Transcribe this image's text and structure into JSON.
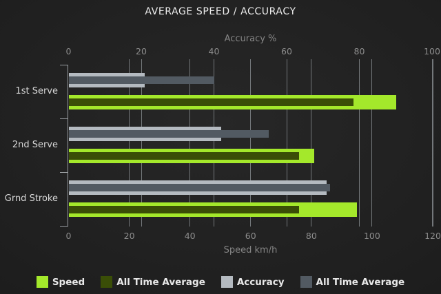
{
  "title": "AVERAGE SPEED / ACCURACY",
  "chart_data": {
    "type": "bar",
    "orientation": "horizontal",
    "grid": true,
    "legend_position": "bottom",
    "categories": [
      "1st Serve",
      "2nd Serve",
      "Grnd Stroke"
    ],
    "axes": {
      "top": {
        "label": "Accuracy %",
        "ticks": [
          0,
          20,
          40,
          60,
          80,
          100
        ],
        "range": [
          0,
          100
        ]
      },
      "bottom": {
        "label": "Speed km/h",
        "ticks": [
          0,
          20,
          40,
          60,
          80,
          100,
          120
        ],
        "range": [
          0,
          120
        ]
      }
    },
    "series": [
      {
        "name": "Speed",
        "axis": "bottom",
        "layer": "base",
        "color": "#a4e82b",
        "values": [
          108,
          81,
          95
        ]
      },
      {
        "name": "All Time Average",
        "axis": "bottom",
        "layer": "overlay",
        "color": "#3a4e07",
        "values": [
          94,
          76,
          76
        ]
      },
      {
        "name": "Accuracy",
        "axis": "top",
        "layer": "base",
        "color": "#b4bac0",
        "values": [
          21,
          42,
          71
        ]
      },
      {
        "name": "All Time Average",
        "axis": "top",
        "layer": "overlay",
        "color": "#525a62",
        "values": [
          40,
          55,
          72
        ]
      }
    ]
  },
  "colors": {
    "speed": "#a4e82b",
    "speed_all_time_average": "#3a4e07",
    "accuracy": "#b4bac0",
    "accuracy_all_time_average": "#525a62"
  }
}
